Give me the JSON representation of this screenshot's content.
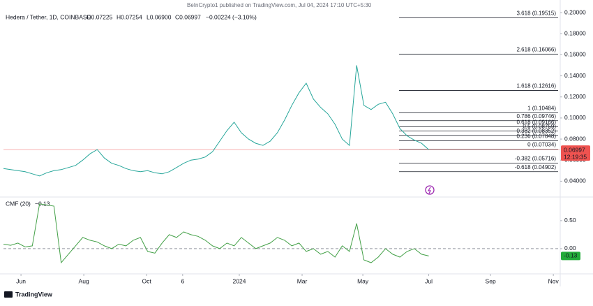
{
  "header": {
    "publisher": "BeInCrypto1 published on TradingView.com, Jul 04, 2024 17:10 UTC+5:30",
    "symbol": "Hedera / Tether, 1D, COINBASE",
    "ohlc": [
      "O0.07225",
      "H0.07254",
      "L0.06900",
      "C0.06997",
      "−0.00224 (−3.10%)"
    ],
    "brand": "TradingView"
  },
  "chart_data": [
    {
      "type": "line",
      "color": "#26a69a",
      "xlim": [
        0,
        540
      ],
      "x": [
        0,
        7,
        14,
        21,
        28,
        35,
        42,
        49,
        56,
        63,
        70,
        77,
        84,
        91,
        98,
        105,
        112,
        119,
        126,
        133,
        140,
        147,
        154,
        161,
        168,
        175,
        182,
        189,
        196,
        203,
        210,
        217,
        224,
        231,
        238,
        245,
        252,
        259,
        266,
        273,
        280,
        287,
        294,
        301,
        308,
        315,
        322,
        329,
        336,
        343,
        350,
        357,
        364,
        371,
        378,
        385,
        392,
        399,
        406,
        413
      ],
      "values": [
        0.052,
        0.051,
        0.05,
        0.049,
        0.047,
        0.045,
        0.048,
        0.05,
        0.051,
        0.053,
        0.055,
        0.06,
        0.066,
        0.07,
        0.062,
        0.057,
        0.055,
        0.052,
        0.05,
        0.049,
        0.05,
        0.048,
        0.047,
        0.049,
        0.053,
        0.057,
        0.06,
        0.061,
        0.063,
        0.068,
        0.078,
        0.088,
        0.096,
        0.086,
        0.08,
        0.076,
        0.074,
        0.078,
        0.086,
        0.098,
        0.112,
        0.124,
        0.133,
        0.118,
        0.11,
        0.104,
        0.094,
        0.08,
        0.074,
        0.15,
        0.112,
        0.108,
        0.113,
        0.115,
        0.104,
        0.09,
        0.083,
        0.079,
        0.076,
        0.06997
      ],
      "ylim": [
        0.025,
        0.212
      ],
      "yticks": [
        {
          "value": 0.2,
          "label": "0.20000"
        },
        {
          "value": 0.18,
          "label": "0.18000"
        },
        {
          "value": 0.16,
          "label": "0.16000"
        },
        {
          "value": 0.14,
          "label": "0.14000"
        },
        {
          "value": 0.12,
          "label": "0.12000"
        },
        {
          "value": 0.1,
          "label": "0.10000"
        },
        {
          "value": 0.08,
          "label": "0.08000"
        },
        {
          "value": 0.06,
          "label": "0.06000"
        },
        {
          "value": 0.04,
          "label": "0.04000"
        }
      ],
      "fib_levels": [
        {
          "value": 0.19515,
          "label": "3.618 (0.19515)"
        },
        {
          "value": 0.16066,
          "label": "2.618 (0.16066)"
        },
        {
          "value": 0.12616,
          "label": "1.618 (0.12616)"
        },
        {
          "value": 0.10484,
          "label": "1 (0.10484)"
        },
        {
          "value": 0.09746,
          "label": "0.786 (0.09746)"
        },
        {
          "value": 0.09166,
          "label": "0.618 (0.09166)"
        },
        {
          "value": 0.08759,
          "label": "0.5 (0.08759)"
        },
        {
          "value": 0.08352,
          "label": "0.382 (0.08352)"
        },
        {
          "value": 0.07848,
          "label": "0.236 (0.07848)"
        },
        {
          "value": 0.07034,
          "label": "0 (0.07034)"
        },
        {
          "value": 0.05716,
          "label": "-0.382 (0.05716)"
        },
        {
          "value": 0.04902,
          "label": "-0.618 (0.04902)"
        }
      ],
      "last_price": 0.06997,
      "countdown": "12:19:35"
    },
    {
      "type": "line",
      "title": "CMF (20)",
      "legend_value": "−0.13",
      "color": "#43a047",
      "xlim": [
        0,
        540
      ],
      "x": [
        0,
        7,
        14,
        21,
        28,
        35,
        42,
        49,
        56,
        63,
        70,
        77,
        84,
        91,
        98,
        105,
        112,
        119,
        126,
        133,
        140,
        147,
        154,
        161,
        168,
        175,
        182,
        189,
        196,
        203,
        210,
        217,
        224,
        231,
        238,
        245,
        252,
        259,
        266,
        273,
        280,
        287,
        294,
        301,
        308,
        315,
        322,
        329,
        336,
        343,
        350,
        357,
        364,
        371,
        378,
        385,
        392,
        399,
        406,
        413
      ],
      "values": [
        0.08,
        0.06,
        0.1,
        0.03,
        0.05,
        0.8,
        0.78,
        0.76,
        -0.25,
        -0.1,
        0.05,
        0.2,
        0.15,
        0.12,
        0.05,
        0.0,
        0.08,
        0.05,
        0.15,
        0.2,
        -0.05,
        -0.08,
        0.1,
        0.25,
        0.2,
        0.3,
        0.25,
        0.22,
        0.15,
        0.05,
        0.0,
        0.1,
        0.05,
        0.2,
        0.1,
        0.0,
        0.05,
        0.1,
        0.2,
        0.15,
        0.05,
        0.1,
        -0.05,
        0.0,
        -0.1,
        -0.05,
        -0.15,
        0.05,
        -0.05,
        0.45,
        -0.2,
        -0.25,
        -0.15,
        0.0,
        -0.1,
        -0.15,
        -0.05,
        0.0,
        -0.1,
        -0.13
      ],
      "ylim": [
        -0.45,
        0.91
      ],
      "yticks": [
        {
          "value": 0.5,
          "label": "0.50"
        },
        {
          "value": 0,
          "label": "0.00"
        }
      ],
      "last_value": -0.13,
      "xticks": [
        {
          "value": 17,
          "label": "Jun"
        },
        {
          "value": 78,
          "label": "Aug"
        },
        {
          "value": 139,
          "label": "Oct"
        },
        {
          "value": 174,
          "label": "6"
        },
        {
          "value": 229,
          "label": "2024"
        },
        {
          "value": 290,
          "label": "Mar"
        },
        {
          "value": 349,
          "label": "May"
        },
        {
          "value": 413,
          "label": "Jul"
        },
        {
          "value": 473,
          "label": "Sep"
        },
        {
          "value": 534,
          "label": "Nov"
        }
      ]
    }
  ]
}
